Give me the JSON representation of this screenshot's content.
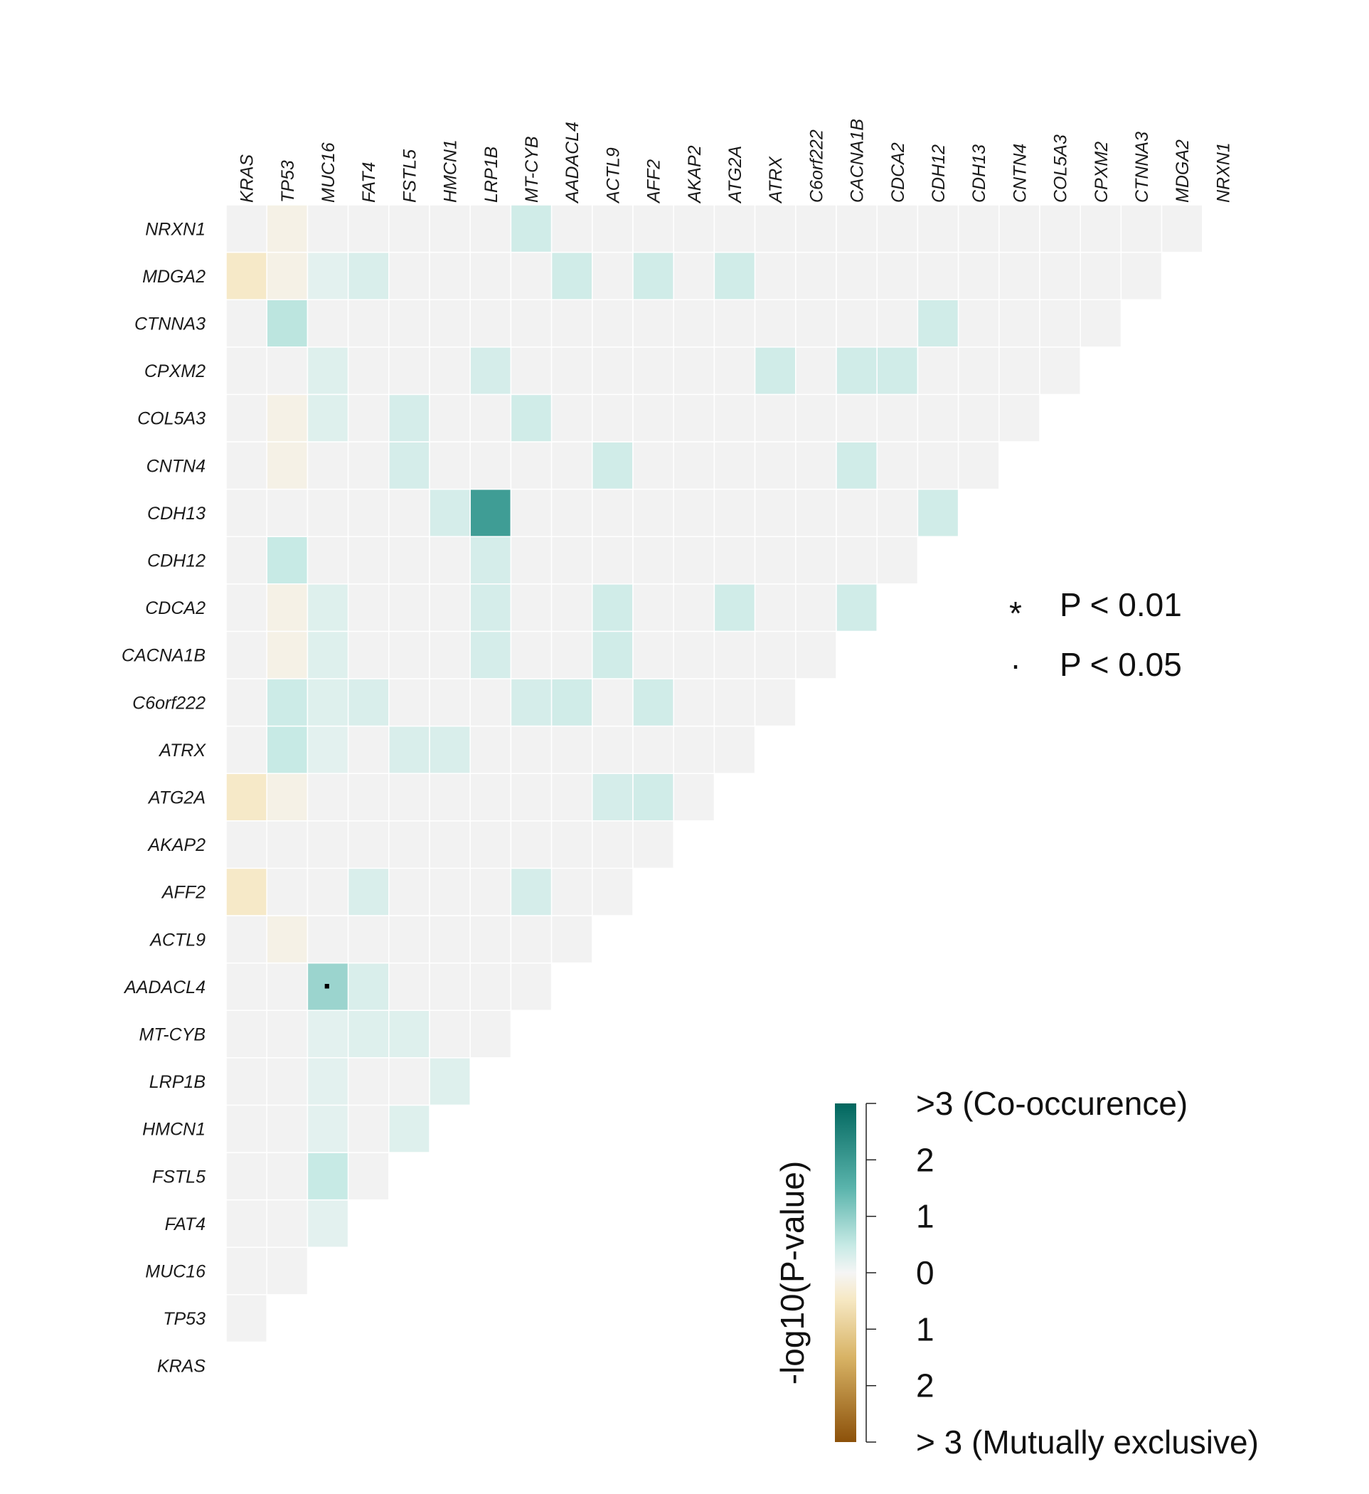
{
  "chart_data": {
    "type": "heatmap",
    "layout": "lower-triangular",
    "genes": [
      "KRAS",
      "TP53",
      "MUC16",
      "FAT4",
      "FSTL5",
      "HMCN1",
      "LRP1B",
      "MT-CYB",
      "AADACL4",
      "ACTL9",
      "AFF2",
      "AKAP2",
      "ATG2A",
      "ATRX",
      "C6orf222",
      "CACNA1B",
      "CDCA2",
      "CDH12",
      "CDH13",
      "CNTN4",
      "COL5A3",
      "CPXM2",
      "CTNNA3",
      "MDGA2",
      "NRXN1"
    ],
    "value_scale": {
      "colorbar_title": "-log10(P-value)",
      "range": [
        -3,
        3
      ],
      "tick_labels": [
        ">3 (Co-occurence)",
        "2",
        "1",
        "0",
        "1",
        "2",
        "> 3 (Mutually exclusive)"
      ],
      "colors": {
        "co_occurrence_max": "#01665e",
        "neutral": "#f5f5f5",
        "mutually_exclusive_max": "#8c510a",
        "empty_cell": "#f2f2f2"
      }
    },
    "significance_legend": [
      {
        "symbol": "*",
        "label": "P < 0.01"
      },
      {
        "symbol": "·",
        "label": "P < 0.05"
      }
    ],
    "cells": [
      {
        "row": "NRXN1",
        "col": "TP53",
        "value": -0.3
      },
      {
        "row": "NRXN1",
        "col": "MT-CYB",
        "value": 0.8
      },
      {
        "row": "MDGA2",
        "col": "KRAS",
        "value": -0.9
      },
      {
        "row": "MDGA2",
        "col": "TP53",
        "value": -0.3
      },
      {
        "row": "MDGA2",
        "col": "MUC16",
        "value": 0.4
      },
      {
        "row": "MDGA2",
        "col": "FAT4",
        "value": 0.6
      },
      {
        "row": "MDGA2",
        "col": "AADACL4",
        "value": 0.8
      },
      {
        "row": "MDGA2",
        "col": "AFF2",
        "value": 0.8
      },
      {
        "row": "MDGA2",
        "col": "ATG2A",
        "value": 0.8
      },
      {
        "row": "CTNNA3",
        "col": "TP53",
        "value": 1.1
      },
      {
        "row": "CTNNA3",
        "col": "CDH12",
        "value": 0.8
      },
      {
        "row": "CPXM2",
        "col": "MUC16",
        "value": 0.5
      },
      {
        "row": "CPXM2",
        "col": "LRP1B",
        "value": 0.7
      },
      {
        "row": "CPXM2",
        "col": "ATRX",
        "value": 0.8
      },
      {
        "row": "CPXM2",
        "col": "CACNA1B",
        "value": 0.8
      },
      {
        "row": "CPXM2",
        "col": "CDCA2",
        "value": 0.8
      },
      {
        "row": "COL5A3",
        "col": "TP53",
        "value": -0.3
      },
      {
        "row": "COL5A3",
        "col": "MUC16",
        "value": 0.5
      },
      {
        "row": "COL5A3",
        "col": "FSTL5",
        "value": 0.7
      },
      {
        "row": "COL5A3",
        "col": "MT-CYB",
        "value": 0.8
      },
      {
        "row": "CNTN4",
        "col": "TP53",
        "value": -0.3
      },
      {
        "row": "CNTN4",
        "col": "FSTL5",
        "value": 0.7
      },
      {
        "row": "CNTN4",
        "col": "ACTL9",
        "value": 0.8
      },
      {
        "row": "CNTN4",
        "col": "CACNA1B",
        "value": 0.8
      },
      {
        "row": "CDH13",
        "col": "HMCN1",
        "value": 0.7
      },
      {
        "row": "CDH13",
        "col": "LRP1B",
        "value": 2.3
      },
      {
        "row": "CDH13",
        "col": "CDH12",
        "value": 0.8
      },
      {
        "row": "CDH12",
        "col": "TP53",
        "value": 1.0
      },
      {
        "row": "CDH12",
        "col": "LRP1B",
        "value": 0.7
      },
      {
        "row": "CDCA2",
        "col": "TP53",
        "value": -0.3
      },
      {
        "row": "CDCA2",
        "col": "MUC16",
        "value": 0.5
      },
      {
        "row": "CDCA2",
        "col": "LRP1B",
        "value": 0.7
      },
      {
        "row": "CDCA2",
        "col": "ACTL9",
        "value": 0.8
      },
      {
        "row": "CDCA2",
        "col": "ATG2A",
        "value": 0.8
      },
      {
        "row": "CDCA2",
        "col": "CACNA1B",
        "value": 0.8
      },
      {
        "row": "CACNA1B",
        "col": "TP53",
        "value": -0.3
      },
      {
        "row": "CACNA1B",
        "col": "MUC16",
        "value": 0.5
      },
      {
        "row": "CACNA1B",
        "col": "LRP1B",
        "value": 0.7
      },
      {
        "row": "CACNA1B",
        "col": "ACTL9",
        "value": 0.8
      },
      {
        "row": "C6orf222",
        "col": "TP53",
        "value": 0.9
      },
      {
        "row": "C6orf222",
        "col": "MUC16",
        "value": 0.5
      },
      {
        "row": "C6orf222",
        "col": "FAT4",
        "value": 0.6
      },
      {
        "row": "C6orf222",
        "col": "MT-CYB",
        "value": 0.7
      },
      {
        "row": "C6orf222",
        "col": "AADACL4",
        "value": 0.8
      },
      {
        "row": "C6orf222",
        "col": "AFF2",
        "value": 0.8
      },
      {
        "row": "ATRX",
        "col": "TP53",
        "value": 1.0
      },
      {
        "row": "ATRX",
        "col": "MUC16",
        "value": 0.4
      },
      {
        "row": "ATRX",
        "col": "FSTL5",
        "value": 0.6
      },
      {
        "row": "ATRX",
        "col": "HMCN1",
        "value": 0.6
      },
      {
        "row": "ATG2A",
        "col": "KRAS",
        "value": -0.9
      },
      {
        "row": "ATG2A",
        "col": "TP53",
        "value": -0.3
      },
      {
        "row": "ATG2A",
        "col": "ACTL9",
        "value": 0.7
      },
      {
        "row": "ATG2A",
        "col": "AFF2",
        "value": 0.8
      },
      {
        "row": "AFF2",
        "col": "KRAS",
        "value": -0.9
      },
      {
        "row": "AFF2",
        "col": "FAT4",
        "value": 0.6
      },
      {
        "row": "AFF2",
        "col": "MT-CYB",
        "value": 0.7
      },
      {
        "row": "ACTL9",
        "col": "TP53",
        "value": -0.3
      },
      {
        "row": "AADACL4",
        "col": "MUC16",
        "value": 1.4,
        "significance": "·"
      },
      {
        "row": "AADACL4",
        "col": "FAT4",
        "value": 0.6
      },
      {
        "row": "MT-CYB",
        "col": "MUC16",
        "value": 0.4
      },
      {
        "row": "MT-CYB",
        "col": "FAT4",
        "value": 0.5
      },
      {
        "row": "MT-CYB",
        "col": "FSTL5",
        "value": 0.5
      },
      {
        "row": "LRP1B",
        "col": "MUC16",
        "value": 0.4
      },
      {
        "row": "LRP1B",
        "col": "HMCN1",
        "value": 0.5
      },
      {
        "row": "HMCN1",
        "col": "MUC16",
        "value": 0.4
      },
      {
        "row": "HMCN1",
        "col": "FSTL5",
        "value": 0.5
      },
      {
        "row": "FSTL5",
        "col": "MUC16",
        "value": 1.0
      },
      {
        "row": "FAT4",
        "col": "MUC16",
        "value": 0.4
      }
    ]
  }
}
